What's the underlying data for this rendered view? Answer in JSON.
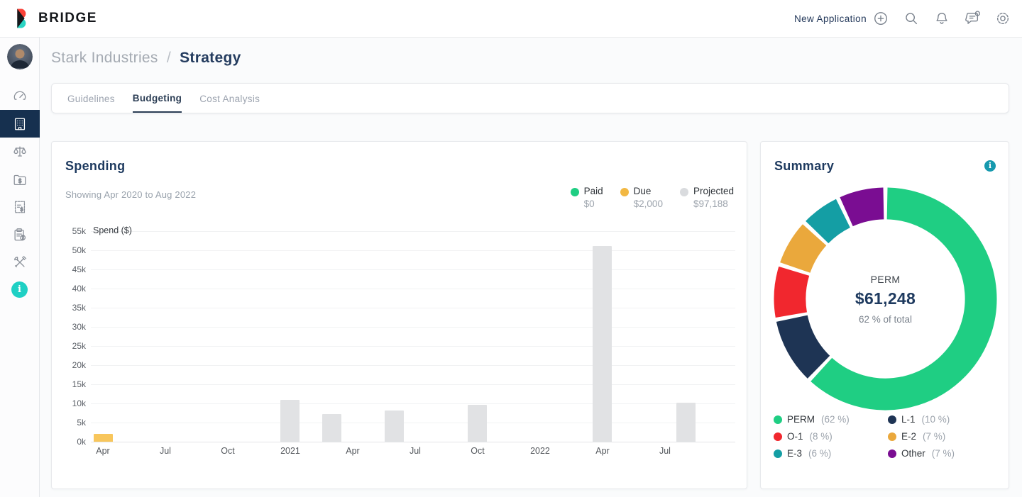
{
  "header": {
    "brand": "BRIDGE",
    "new_application_label": "New Application",
    "icons": [
      "plus-circle",
      "search",
      "bell",
      "chat",
      "gear"
    ],
    "chat_has_notification_dot": true,
    "notification_dot_color": "#F5413D"
  },
  "sidebar": {
    "items": [
      "avatar",
      "dashboard-gauge",
      "company-building",
      "legal-scales",
      "billing-folder",
      "invoice-receipt",
      "clipboard-question",
      "tools",
      "info"
    ],
    "active_item": "company-building",
    "active_bg": "#16304F",
    "info_accent": "#1FD0C4"
  },
  "breadcrumb": {
    "parent": "Stark Industries",
    "separator": "/",
    "current": "Strategy"
  },
  "tabs": [
    {
      "label": "Guidelines",
      "active": false
    },
    {
      "label": "Budgeting",
      "active": true
    },
    {
      "label": "Cost Analysis",
      "active": false
    }
  ],
  "spending": {
    "title": "Spending",
    "subtitle": "Showing Apr 2020 to Aug 2022",
    "legend": [
      {
        "label": "Paid",
        "value": "$0",
        "color": "#1FCE83"
      },
      {
        "label": "Due",
        "value": "$2,000",
        "color": "#F2B843"
      },
      {
        "label": "Projected",
        "value": "$97,188",
        "color": "#D9DBDE"
      }
    ],
    "chart_data": {
      "type": "bar",
      "title": "Spending",
      "axis_label": "Spend ($)",
      "ylim": [
        0,
        55000
      ],
      "grid": true,
      "series_colors": {
        "Paid": "#1FCE83",
        "Due": "#F8C65C",
        "Projected": "#E1E2E4"
      },
      "y_ticks": [
        {
          "label": "0k",
          "value": 0
        },
        {
          "label": "5k",
          "value": 5000
        },
        {
          "label": "10k",
          "value": 10000
        },
        {
          "label": "15k",
          "value": 15000
        },
        {
          "label": "20k",
          "value": 20000
        },
        {
          "label": "25k",
          "value": 25000
        },
        {
          "label": "30k",
          "value": 30000
        },
        {
          "label": "35k",
          "value": 35000
        },
        {
          "label": "40k",
          "value": 40000
        },
        {
          "label": "45k",
          "value": 45000
        },
        {
          "label": "50k",
          "value": 50000
        },
        {
          "label": "55k",
          "value": 55000
        }
      ],
      "x_ticks": [
        {
          "label": "Apr",
          "month": 0
        },
        {
          "label": "Jul",
          "month": 3
        },
        {
          "label": "Oct",
          "month": 6
        },
        {
          "label": "2021",
          "month": 9
        },
        {
          "label": "Apr",
          "month": 12
        },
        {
          "label": "Jul",
          "month": 15
        },
        {
          "label": "Oct",
          "month": 18
        },
        {
          "label": "2022",
          "month": 21
        },
        {
          "label": "Apr",
          "month": 24
        },
        {
          "label": "Jul",
          "month": 27
        }
      ],
      "bars": [
        {
          "month": 0,
          "period": "Apr 2020",
          "value": 2000,
          "series": "Due"
        },
        {
          "month": 9,
          "period": "Jan 2021",
          "value": 11000,
          "series": "Projected"
        },
        {
          "month": 11,
          "period": "Mar 2021",
          "value": 7200,
          "series": "Projected"
        },
        {
          "month": 14,
          "period": "Jun 2021",
          "value": 8100,
          "series": "Projected"
        },
        {
          "month": 18,
          "period": "Oct 2021",
          "value": 9600,
          "series": "Projected"
        },
        {
          "month": 24,
          "period": "Apr 2022",
          "value": 51100,
          "series": "Projected"
        },
        {
          "month": 28,
          "period": "Aug 2022",
          "value": 10200,
          "series": "Projected"
        }
      ]
    }
  },
  "summary": {
    "title": "Summary",
    "center": {
      "label": "PERM",
      "value": "$61,248",
      "subtext": "62 % of total"
    },
    "chart_data": {
      "type": "pie",
      "donut": true,
      "start_angle_deg": 0,
      "direction": "clockwise",
      "segments": [
        {
          "label": "PERM",
          "pct": 62,
          "pct_label": "(62 %)",
          "color": "#1FCE83"
        },
        {
          "label": "L-1",
          "pct": 10,
          "pct_label": "(10 %)",
          "color": "#1E3454"
        },
        {
          "label": "O-1",
          "pct": 8,
          "pct_label": "(8 %)",
          "color": "#F1272E"
        },
        {
          "label": "E-2",
          "pct": 7,
          "pct_label": "(7 %)",
          "color": "#EAA83C"
        },
        {
          "label": "E-3",
          "pct": 6,
          "pct_label": "(6 %)",
          "color": "#149EA4"
        },
        {
          "label": "Other",
          "pct": 7,
          "pct_label": "(7 %)",
          "color": "#7A0D92"
        }
      ]
    }
  }
}
